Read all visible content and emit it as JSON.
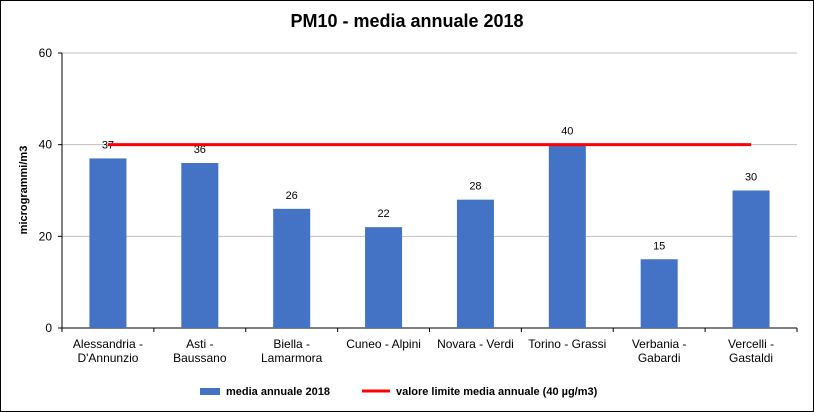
{
  "chart_data": {
    "type": "bar",
    "title": "PM10 - media annuale 2018",
    "y_label": "microgrammi/m3",
    "categories": [
      "Alessandria -\nD'Annunzio",
      "Asti -\nBaussano",
      "Biella -\nLamarmora",
      "Cuneo  - Alpini",
      "Novara  - Verdi",
      "Torino  - Grassi",
      "Verbania -\nGabardi",
      "Vercelli -\nGastaldi"
    ],
    "series": [
      {
        "name": "media annuale 2018",
        "color": "#4472c4",
        "type": "bar",
        "values": [
          37,
          36,
          26,
          22,
          28,
          40,
          15,
          30
        ]
      },
      {
        "name": "valore limite media annuale (40 µg/m3)",
        "color": "#ff0000",
        "type": "line",
        "values": [
          40,
          40,
          40,
          40,
          40,
          40,
          40,
          40
        ]
      }
    ],
    "ylim": [
      0,
      60
    ],
    "yticks": [
      0,
      20,
      40,
      60
    ],
    "grid": true,
    "legend": "bottom"
  }
}
